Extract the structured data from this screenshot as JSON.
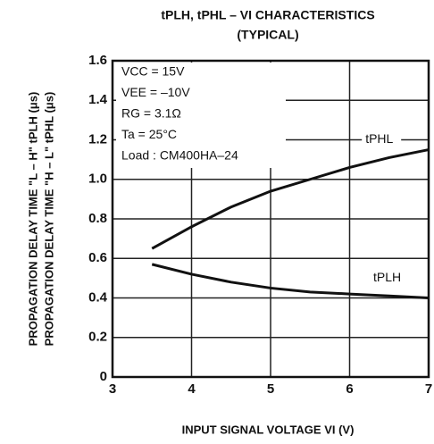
{
  "chart_data": {
    "type": "line",
    "title": "tPLH, tPHL – VI CHARACTERISTICS",
    "subtitle": "(TYPICAL)",
    "x_label": "INPUT SIGNAL VOLTAGE   VI (V)",
    "y_label": "PROPAGATION DELAY TIME \"L – H\"   tPLH (μs)",
    "y_label_2": "PROPAGATION DELAY TIME \"H – L\"   tPHL (μs)",
    "annotations": [
      "VCC = 15V",
      "VEE = –10V",
      "RG = 3.1Ω",
      "Ta = 25°C",
      "Load : CM400HA–24"
    ],
    "x": [
      3.5,
      4,
      4.5,
      5,
      5.5,
      6,
      6.5,
      7
    ],
    "series": [
      {
        "name": "tPHL",
        "color": "#111111",
        "values": [
          0.65,
          0.76,
          0.86,
          0.94,
          1.0,
          1.06,
          1.11,
          1.15
        ]
      },
      {
        "name": "tPLH",
        "color": "#111111",
        "values": [
          0.57,
          0.52,
          0.48,
          0.45,
          0.43,
          0.42,
          0.41,
          0.4
        ]
      }
    ],
    "xlim": [
      3,
      7
    ],
    "ylim": [
      0,
      1.6
    ],
    "xticks": [
      3,
      4,
      5,
      6,
      7
    ],
    "yticks": [
      0,
      0.2,
      0.4,
      0.6,
      0.8,
      {
        "value": 1,
        "label": "1.0"
      },
      1.2,
      1.4,
      1.6
    ],
    "grid": true
  }
}
